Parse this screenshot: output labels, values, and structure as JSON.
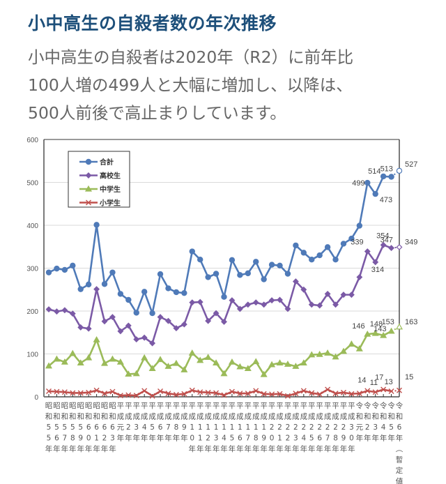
{
  "header": {
    "title": "小中高生の自殺者数の年次推移",
    "description_lines": [
      "小中高生の自殺者は2020年（R2）に前年比",
      "100人増の499人と大幅に増加し、以降は、",
      "500人前後で高止まりしています。"
    ]
  },
  "chart_data": {
    "type": "line",
    "title": "",
    "xlabel": "",
    "ylabel": "",
    "ylim": [
      0,
      600
    ],
    "yticks": [
      0,
      100,
      200,
      300,
      400,
      500,
      600
    ],
    "grid": true,
    "legend_position": "top-left",
    "x": [
      [
        "昭",
        "和",
        "5",
        "5",
        "年"
      ],
      [
        "昭",
        "和",
        "5",
        "6",
        "年"
      ],
      [
        "昭",
        "和",
        "5",
        "7",
        "年"
      ],
      [
        "昭",
        "和",
        "5",
        "8",
        "年"
      ],
      [
        "昭",
        "和",
        "5",
        "9",
        "年"
      ],
      [
        "昭",
        "和",
        "6",
        "0",
        "年"
      ],
      [
        "昭",
        "和",
        "6",
        "1",
        "年"
      ],
      [
        "昭",
        "和",
        "6",
        "2",
        "年"
      ],
      [
        "昭",
        "和",
        "6",
        "3",
        "年"
      ],
      [
        "平",
        "成",
        "元",
        "年"
      ],
      [
        "平",
        "成",
        "2",
        "年"
      ],
      [
        "平",
        "成",
        "3",
        "年"
      ],
      [
        "平",
        "成",
        "4",
        "年"
      ],
      [
        "平",
        "成",
        "5",
        "年"
      ],
      [
        "平",
        "成",
        "6",
        "年"
      ],
      [
        "平",
        "成",
        "7",
        "年"
      ],
      [
        "平",
        "成",
        "8",
        "年"
      ],
      [
        "平",
        "成",
        "9",
        "年"
      ],
      [
        "平",
        "成",
        "1",
        "0",
        "年"
      ],
      [
        "平",
        "成",
        "1",
        "1",
        "年"
      ],
      [
        "平",
        "成",
        "1",
        "2",
        "年"
      ],
      [
        "平",
        "成",
        "1",
        "3",
        "年"
      ],
      [
        "平",
        "成",
        "1",
        "4",
        "年"
      ],
      [
        "平",
        "成",
        "1",
        "5",
        "年"
      ],
      [
        "平",
        "成",
        "1",
        "6",
        "年"
      ],
      [
        "平",
        "成",
        "1",
        "7",
        "年"
      ],
      [
        "平",
        "成",
        "1",
        "8",
        "年"
      ],
      [
        "平",
        "成",
        "1",
        "9",
        "年"
      ],
      [
        "平",
        "成",
        "2",
        "0",
        "年"
      ],
      [
        "平",
        "成",
        "2",
        "1",
        "年"
      ],
      [
        "平",
        "成",
        "2",
        "2",
        "年"
      ],
      [
        "平",
        "成",
        "2",
        "3",
        "年"
      ],
      [
        "平",
        "成",
        "2",
        "4",
        "年"
      ],
      [
        "平",
        "成",
        "2",
        "5",
        "年"
      ],
      [
        "平",
        "成",
        "2",
        "6",
        "年"
      ],
      [
        "平",
        "成",
        "2",
        "7",
        "年"
      ],
      [
        "平",
        "成",
        "2",
        "8",
        "年"
      ],
      [
        "平",
        "成",
        "2",
        "9",
        "年"
      ],
      [
        "平",
        "成",
        "3",
        "0",
        "年"
      ],
      [
        "令",
        "和",
        "元",
        "年"
      ],
      [
        "令",
        "和",
        "2",
        "年"
      ],
      [
        "令",
        "和",
        "3",
        "年"
      ],
      [
        "令",
        "和",
        "4",
        "年"
      ],
      [
        "令",
        "和",
        "5",
        "年"
      ],
      [
        "令",
        "和",
        "6",
        "年",
        "︵",
        "暫",
        "定",
        "値",
        "︶"
      ]
    ],
    "series": [
      {
        "name": "合計",
        "color": "#4f7ab8",
        "marker": "circle",
        "values": [
          290,
          299,
          296,
          306,
          251,
          262,
          401,
          263,
          290,
          240,
          226,
          196,
          245,
          195,
          286,
          253,
          244,
          242,
          339,
          320,
          279,
          287,
          233,
          319,
          284,
          288,
          315,
          274,
          308,
          306,
          287,
          353,
          336,
          320,
          330,
          349,
          320,
          357,
          369,
          399,
          499,
          473,
          514,
          513,
          527
        ],
        "labels": {
          "40": "499",
          "41": "473",
          "42": "514",
          "43": "513",
          "44": "527"
        }
      },
      {
        "name": "高校生",
        "color": "#7b5aa6",
        "marker": "diamond",
        "values": [
          204,
          199,
          202,
          194,
          162,
          159,
          251,
          176,
          186,
          153,
          166,
          134,
          138,
          125,
          186,
          177,
          160,
          169,
          220,
          221,
          177,
          195,
          175,
          225,
          205,
          215,
          220,
          215,
          225,
          226,
          205,
          269,
          250,
          215,
          213,
          240,
          215,
          238,
          238,
          279,
          339,
          314,
          354,
          347,
          349
        ],
        "labels": {
          "40": "339",
          "41": "314",
          "42": "354",
          "43": "347",
          "44": "349"
        }
      },
      {
        "name": "中学生",
        "color": "#9bbb59",
        "marker": "triangle",
        "values": [
          72,
          88,
          81,
          101,
          79,
          91,
          133,
          78,
          88,
          81,
          53,
          54,
          91,
          66,
          87,
          71,
          78,
          63,
          102,
          85,
          92,
          79,
          54,
          81,
          70,
          66,
          82,
          52,
          75,
          79,
          76,
          71,
          79,
          98,
          99,
          102,
          93,
          106,
          123,
          112,
          146,
          148,
          143,
          153,
          163
        ],
        "labels": {
          "40": "146",
          "41": "148",
          "42": "143",
          "43": "153",
          "44": "163"
        }
      },
      {
        "name": "小学生",
        "color": "#c0504d",
        "marker": "x",
        "values": [
          13,
          12,
          11,
          9,
          9,
          10,
          15,
          8,
          12,
          3,
          4,
          3,
          14,
          2,
          13,
          8,
          5,
          7,
          15,
          11,
          10,
          9,
          4,
          12,
          8,
          8,
          14,
          7,
          6,
          7,
          2,
          8,
          14,
          9,
          6,
          17,
          8,
          10,
          7,
          8,
          14,
          11,
          17,
          13,
          15
        ],
        "labels": {
          "40": "14",
          "41": "11",
          "42": "17",
          "43": "13",
          "44": "15"
        }
      }
    ],
    "provisional_last_point": true
  }
}
